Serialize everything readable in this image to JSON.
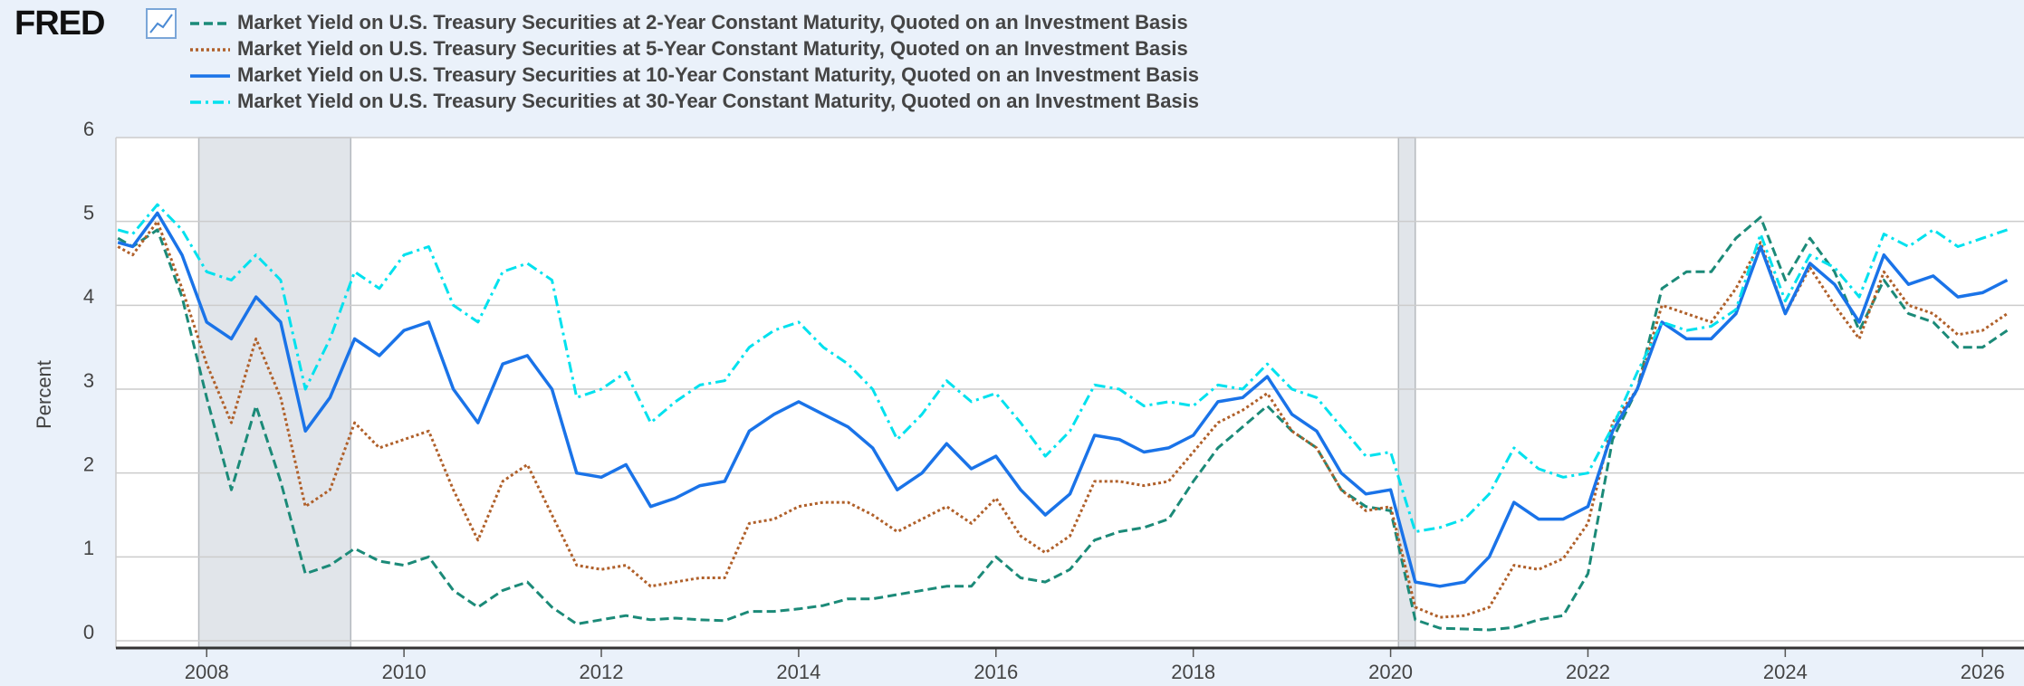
{
  "chart_data": {
    "type": "line",
    "brand": "FRED",
    "ylabel": "Percent",
    "x": [
      2007.1,
      2007.25,
      2007.5,
      2007.75,
      2008.0,
      2008.25,
      2008.5,
      2008.75,
      2009.0,
      2009.25,
      2009.5,
      2009.75,
      2010.0,
      2010.25,
      2010.5,
      2010.75,
      2011.0,
      2011.25,
      2011.5,
      2011.75,
      2012.0,
      2012.25,
      2012.5,
      2012.75,
      2013.0,
      2013.25,
      2013.5,
      2013.75,
      2014.0,
      2014.25,
      2014.5,
      2014.75,
      2015.0,
      2015.25,
      2015.5,
      2015.75,
      2016.0,
      2016.25,
      2016.5,
      2016.75,
      2017.0,
      2017.25,
      2017.5,
      2017.75,
      2018.0,
      2018.25,
      2018.5,
      2018.75,
      2019.0,
      2019.25,
      2019.5,
      2019.75,
      2020.0,
      2020.25,
      2020.5,
      2020.75,
      2021.0,
      2021.25,
      2021.5,
      2021.75,
      2022.0,
      2022.25,
      2022.5,
      2022.75,
      2023.0,
      2023.25,
      2023.5,
      2023.75,
      2024.0,
      2024.25,
      2024.5,
      2024.75,
      2025.0,
      2025.25,
      2025.5,
      2025.75,
      2026.0,
      2026.25
    ],
    "series": [
      {
        "name": "Market Yield on U.S. Treasury Securities at 2-Year Constant Maturity, Quoted on an Investment Basis",
        "color": "#1b8a78",
        "dash": "dashed",
        "values": [
          4.8,
          4.7,
          4.9,
          4.1,
          2.9,
          1.8,
          2.8,
          1.9,
          0.8,
          0.9,
          1.1,
          0.95,
          0.9,
          1.0,
          0.6,
          0.4,
          0.6,
          0.7,
          0.4,
          0.2,
          0.25,
          0.3,
          0.25,
          0.27,
          0.25,
          0.24,
          0.35,
          0.35,
          0.38,
          0.42,
          0.5,
          0.5,
          0.55,
          0.6,
          0.65,
          0.65,
          1.0,
          0.75,
          0.7,
          0.85,
          1.2,
          1.3,
          1.35,
          1.45,
          1.9,
          2.3,
          2.55,
          2.8,
          2.5,
          2.3,
          1.8,
          1.6,
          1.55,
          0.25,
          0.15,
          0.14,
          0.13,
          0.16,
          0.25,
          0.3,
          0.8,
          2.4,
          3.0,
          4.2,
          4.4,
          4.4,
          4.8,
          5.05,
          4.3,
          4.8,
          4.4,
          3.7,
          4.3,
          3.9,
          3.8,
          3.5,
          3.5,
          3.7
        ]
      },
      {
        "name": "Market Yield on U.S. Treasury Securities at 5-Year Constant Maturity, Quoted on an Investment Basis",
        "color": "#b0602a",
        "dash": "dotted",
        "values": [
          4.7,
          4.6,
          5.0,
          4.2,
          3.3,
          2.6,
          3.6,
          2.9,
          1.6,
          1.8,
          2.6,
          2.3,
          2.4,
          2.5,
          1.8,
          1.2,
          1.9,
          2.1,
          1.5,
          0.9,
          0.85,
          0.9,
          0.65,
          0.7,
          0.75,
          0.75,
          1.4,
          1.45,
          1.6,
          1.65,
          1.65,
          1.5,
          1.3,
          1.45,
          1.6,
          1.4,
          1.7,
          1.25,
          1.05,
          1.25,
          1.9,
          1.9,
          1.85,
          1.9,
          2.25,
          2.6,
          2.75,
          2.95,
          2.5,
          2.3,
          1.8,
          1.55,
          1.6,
          0.4,
          0.28,
          0.3,
          0.4,
          0.9,
          0.85,
          0.98,
          1.4,
          2.6,
          3.0,
          4.0,
          3.9,
          3.8,
          4.2,
          4.75,
          3.9,
          4.45,
          4.0,
          3.6,
          4.4,
          4.0,
          3.9,
          3.65,
          3.7,
          3.9
        ]
      },
      {
        "name": "Market Yield on U.S. Treasury Securities at 10-Year Constant Maturity, Quoted on an Investment Basis",
        "color": "#1a73e8",
        "dash": "solid",
        "values": [
          4.75,
          4.7,
          5.1,
          4.6,
          3.8,
          3.6,
          4.1,
          3.8,
          2.5,
          2.9,
          3.6,
          3.4,
          3.7,
          3.8,
          3.0,
          2.6,
          3.3,
          3.4,
          3.0,
          2.0,
          1.95,
          2.1,
          1.6,
          1.7,
          1.85,
          1.9,
          2.5,
          2.7,
          2.85,
          2.7,
          2.55,
          2.3,
          1.8,
          2.0,
          2.35,
          2.05,
          2.2,
          1.8,
          1.5,
          1.75,
          2.45,
          2.4,
          2.25,
          2.3,
          2.45,
          2.85,
          2.9,
          3.15,
          2.7,
          2.5,
          2.0,
          1.75,
          1.8,
          0.7,
          0.65,
          0.7,
          1.0,
          1.65,
          1.45,
          1.45,
          1.6,
          2.5,
          3.0,
          3.8,
          3.6,
          3.6,
          3.9,
          4.7,
          3.9,
          4.5,
          4.25,
          3.8,
          4.6,
          4.25,
          4.35,
          4.1,
          4.15,
          4.3
        ]
      },
      {
        "name": "Market Yield on U.S. Treasury Securities at 30-Year Constant Maturity, Quoted on an Investment Basis",
        "color": "#00e1ee",
        "dash": "dashdot",
        "values": [
          4.9,
          4.85,
          5.2,
          4.9,
          4.4,
          4.3,
          4.6,
          4.3,
          3.0,
          3.6,
          4.4,
          4.2,
          4.6,
          4.7,
          4.0,
          3.8,
          4.4,
          4.5,
          4.3,
          2.9,
          3.0,
          3.2,
          2.6,
          2.85,
          3.05,
          3.1,
          3.5,
          3.7,
          3.8,
          3.5,
          3.3,
          3.0,
          2.4,
          2.7,
          3.1,
          2.85,
          2.95,
          2.6,
          2.2,
          2.5,
          3.05,
          3.0,
          2.8,
          2.85,
          2.8,
          3.05,
          3.0,
          3.3,
          3.0,
          2.9,
          2.55,
          2.2,
          2.25,
          1.3,
          1.35,
          1.45,
          1.75,
          2.3,
          2.05,
          1.95,
          2.0,
          2.55,
          3.2,
          3.8,
          3.7,
          3.75,
          3.95,
          4.85,
          4.05,
          4.6,
          4.45,
          4.1,
          4.85,
          4.7,
          4.9,
          4.7,
          4.8,
          4.9
        ]
      }
    ],
    "shaded_periods": [
      [
        2007.92,
        2009.46
      ],
      [
        2020.08,
        2020.25
      ]
    ],
    "xlim": [
      2007.08,
      2026.42
    ],
    "xticks": [
      2008,
      2010,
      2012,
      2014,
      2016,
      2018,
      2020,
      2022,
      2024,
      2026
    ],
    "ylim": [
      0,
      6
    ],
    "yticks": [
      0,
      1,
      2,
      3,
      4,
      5,
      6
    ],
    "grid": true
  }
}
